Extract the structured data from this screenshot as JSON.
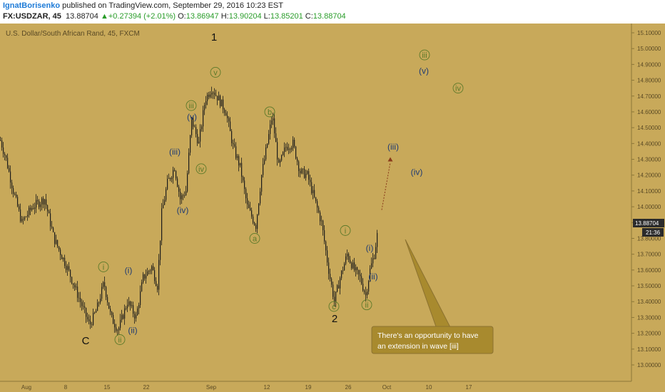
{
  "header": {
    "author": "IgnatBorisenko",
    "published": " published on TradingView.com, September 29, 2016 10:23 EST",
    "symbol": "FX:USDZAR, 45",
    "last": "13.88704",
    "arrow": "▲",
    "change": "+0.27394 (+2.01%)",
    "o_label": "O:",
    "o_val": "13.86947",
    "h_label": "H:",
    "h_val": "13.90204",
    "l_label": "L:",
    "l_val": "13.85201",
    "c_label": "C:",
    "c_val": "13.88704"
  },
  "chart_title": "U.S. Dollar/South African Rand, 45, FXCM",
  "price_tag": "13.88704",
  "time_tag": "21:36",
  "note": {
    "line1": "There's an opportunity to have",
    "line2": "an extension in wave [iii]"
  },
  "colors": {
    "background": "#c8a95a",
    "candles": "#1a1a1a",
    "green_label": "#5c7a2a",
    "blue_label": "#1f3b73",
    "note_box": "#a88a2e"
  },
  "chart_data": {
    "type": "candlestick",
    "ylim": [
      12.95,
      15.12
    ],
    "y_ticks": [
      "15.10000",
      "15.00000",
      "14.90000",
      "14.80000",
      "14.70000",
      "14.60000",
      "14.50000",
      "14.40000",
      "14.30000",
      "14.20000",
      "14.10000",
      "14.00000",
      "13.90000",
      "13.80000",
      "13.70000",
      "13.60000",
      "13.50000",
      "13.40000",
      "13.30000",
      "13.20000",
      "13.10000",
      "13.00000"
    ],
    "x_ticks": [
      "Aug",
      "8",
      "15",
      "22",
      "Sep",
      "12",
      "19",
      "26",
      "Oct",
      "10",
      "17"
    ],
    "price_path_approx": [
      [
        0,
        14.42
      ],
      [
        8,
        14.3
      ],
      [
        18,
        14.1
      ],
      [
        30,
        13.9
      ],
      [
        45,
        14.0
      ],
      [
        62,
        14.05
      ],
      [
        75,
        13.8
      ],
      [
        95,
        13.6
      ],
      [
        112,
        13.4
      ],
      [
        125,
        13.25
      ],
      [
        135,
        13.35
      ],
      [
        145,
        13.52
      ],
      [
        155,
        13.3
      ],
      [
        165,
        13.22
      ],
      [
        178,
        13.4
      ],
      [
        190,
        13.3
      ],
      [
        200,
        13.55
      ],
      [
        212,
        13.62
      ],
      [
        220,
        13.5
      ],
      [
        226,
        13.96
      ],
      [
        234,
        14.15
      ],
      [
        244,
        14.25
      ],
      [
        252,
        14.05
      ],
      [
        260,
        14.1
      ],
      [
        268,
        14.55
      ],
      [
        278,
        14.4
      ],
      [
        287,
        14.68
      ],
      [
        296,
        14.75
      ],
      [
        306,
        14.68
      ],
      [
        316,
        14.6
      ],
      [
        326,
        14.38
      ],
      [
        336,
        14.25
      ],
      [
        346,
        14.0
      ],
      [
        358,
        13.88
      ],
      [
        366,
        14.2
      ],
      [
        374,
        14.4
      ],
      [
        381,
        14.58
      ],
      [
        390,
        14.25
      ],
      [
        400,
        14.38
      ],
      [
        410,
        14.4
      ],
      [
        420,
        14.22
      ],
      [
        430,
        14.2
      ],
      [
        440,
        14.05
      ],
      [
        450,
        13.9
      ],
      [
        460,
        13.6
      ],
      [
        468,
        13.4
      ],
      [
        476,
        13.55
      ],
      [
        486,
        13.7
      ],
      [
        496,
        13.6
      ],
      [
        504,
        13.55
      ],
      [
        512,
        13.44
      ],
      [
        518,
        13.6
      ],
      [
        524,
        13.7
      ],
      [
        530,
        13.88
      ]
    ],
    "wave_labels": {
      "black": [
        {
          "text": "C",
          "x": 120,
          "price": 13.13
        },
        {
          "text": "1",
          "x": 300,
          "price": 15.05
        },
        {
          "text": "2",
          "x": 469,
          "price": 13.27
        }
      ],
      "green_circled": [
        {
          "text": "i",
          "x": 145,
          "price": 13.62
        },
        {
          "text": "ii",
          "x": 168,
          "price": 13.16
        },
        {
          "text": "iii",
          "x": 268,
          "price": 14.64
        },
        {
          "text": "iv",
          "x": 282,
          "price": 14.24
        },
        {
          "text": "v",
          "x": 302,
          "price": 14.85
        },
        {
          "text": "a",
          "x": 357,
          "price": 13.8
        },
        {
          "text": "b",
          "x": 378,
          "price": 14.6
        },
        {
          "text": "c",
          "x": 468,
          "price": 13.37
        },
        {
          "text": "i",
          "x": 484,
          "price": 13.85
        },
        {
          "text": "ii",
          "x": 514,
          "price": 13.38
        },
        {
          "text": "iii",
          "x": 595,
          "price": 14.96
        },
        {
          "text": "iv",
          "x": 642,
          "price": 14.75
        }
      ],
      "blue_paren": [
        {
          "text": "(i)",
          "x": 180,
          "price": 13.58
        },
        {
          "text": "(ii)",
          "x": 186,
          "price": 13.2
        },
        {
          "text": "(iii)",
          "x": 245,
          "price": 14.33
        },
        {
          "text": "(iv)",
          "x": 256,
          "price": 13.96
        },
        {
          "text": "(v)",
          "x": 269,
          "price": 14.55
        },
        {
          "text": "(i)",
          "x": 518,
          "price": 13.72
        },
        {
          "text": "(ii)",
          "x": 523,
          "price": 13.54
        },
        {
          "text": "(iii)",
          "x": 551,
          "price": 14.36
        },
        {
          "text": "(iv)",
          "x": 584,
          "price": 14.2
        },
        {
          "text": "(v)",
          "x": 594,
          "price": 14.84
        }
      ]
    }
  }
}
